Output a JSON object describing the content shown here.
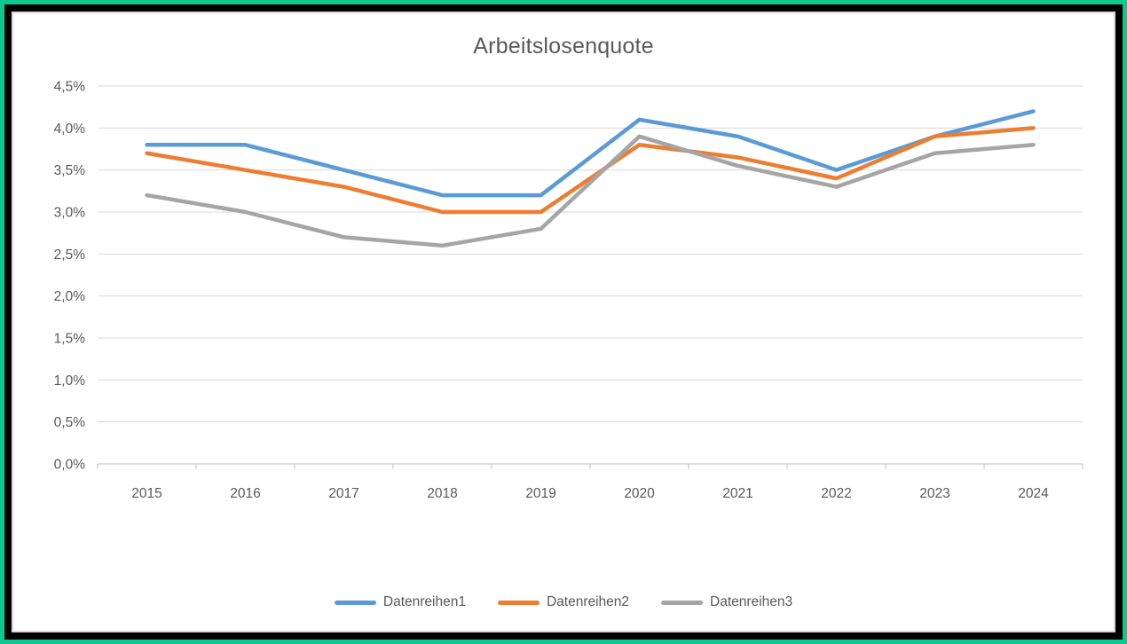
{
  "chart_data": {
    "type": "line",
    "title": "Arbeitslosenquote",
    "categories": [
      "2015",
      "2016",
      "2017",
      "2018",
      "2019",
      "2020",
      "2021",
      "2022",
      "2023",
      "2024"
    ],
    "series": [
      {
        "name": "Datenreihen1",
        "color": "#5B9BD5",
        "values": [
          3.8,
          3.8,
          3.5,
          3.2,
          3.2,
          4.1,
          3.9,
          3.5,
          3.9,
          4.2
        ]
      },
      {
        "name": "Datenreihen2",
        "color": "#ED7D31",
        "values": [
          3.7,
          3.5,
          3.3,
          3.0,
          3.0,
          3.8,
          3.65,
          3.4,
          3.9,
          4.0
        ]
      },
      {
        "name": "Datenreihen3",
        "color": "#A5A5A5",
        "values": [
          3.2,
          3.0,
          2.7,
          2.6,
          2.8,
          3.9,
          3.55,
          3.3,
          3.7,
          3.8
        ]
      }
    ],
    "y_axis": {
      "min": 0,
      "max": 4.5,
      "step": 0.5,
      "tick_labels": [
        "0,0%",
        "0,5%",
        "1,0%",
        "1,5%",
        "2,0%",
        "2,5%",
        "3,0%",
        "3,5%",
        "4,0%",
        "4,5%"
      ]
    },
    "x_axis": {
      "tick_labels": [
        "2015",
        "2016",
        "2017",
        "2018",
        "2019",
        "2020",
        "2021",
        "2022",
        "2023",
        "2024"
      ]
    },
    "legend_position": "bottom",
    "grid": true
  },
  "colors": {
    "frame_outer": "#0DC98E",
    "frame_inner": "#000000",
    "chart_border": "#D9D9D9",
    "gridline": "#D9D9D9",
    "axis_line": "#BFBFBF",
    "text": "#595959",
    "background": "#FFFFFF"
  }
}
